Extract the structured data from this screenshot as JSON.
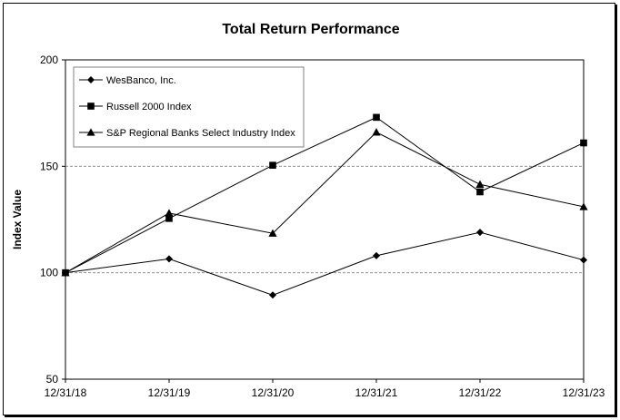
{
  "chart_data": {
    "type": "line",
    "title": "Total Return Performance",
    "xlabel": "",
    "ylabel": "Index Value",
    "categories": [
      "12/31/18",
      "12/31/19",
      "12/31/20",
      "12/31/21",
      "12/31/22",
      "12/31/23"
    ],
    "yticks": [
      50,
      100,
      150,
      200
    ],
    "ylim": [
      50,
      200
    ],
    "grid": "horizontal dashed at 100 and 150",
    "legend_position": "top-left",
    "series": [
      {
        "name": "WesBanco, Inc.",
        "marker": "diamond",
        "values": [
          100,
          106.5,
          89.5,
          108,
          119,
          106
        ]
      },
      {
        "name": "Russell 2000 Index",
        "marker": "square",
        "values": [
          100,
          125.5,
          150.5,
          173,
          138,
          161
        ]
      },
      {
        "name": "S&P Regional Banks Select Industry Index",
        "marker": "triangle",
        "values": [
          100,
          128,
          118.5,
          166,
          141.5,
          131
        ]
      }
    ]
  }
}
